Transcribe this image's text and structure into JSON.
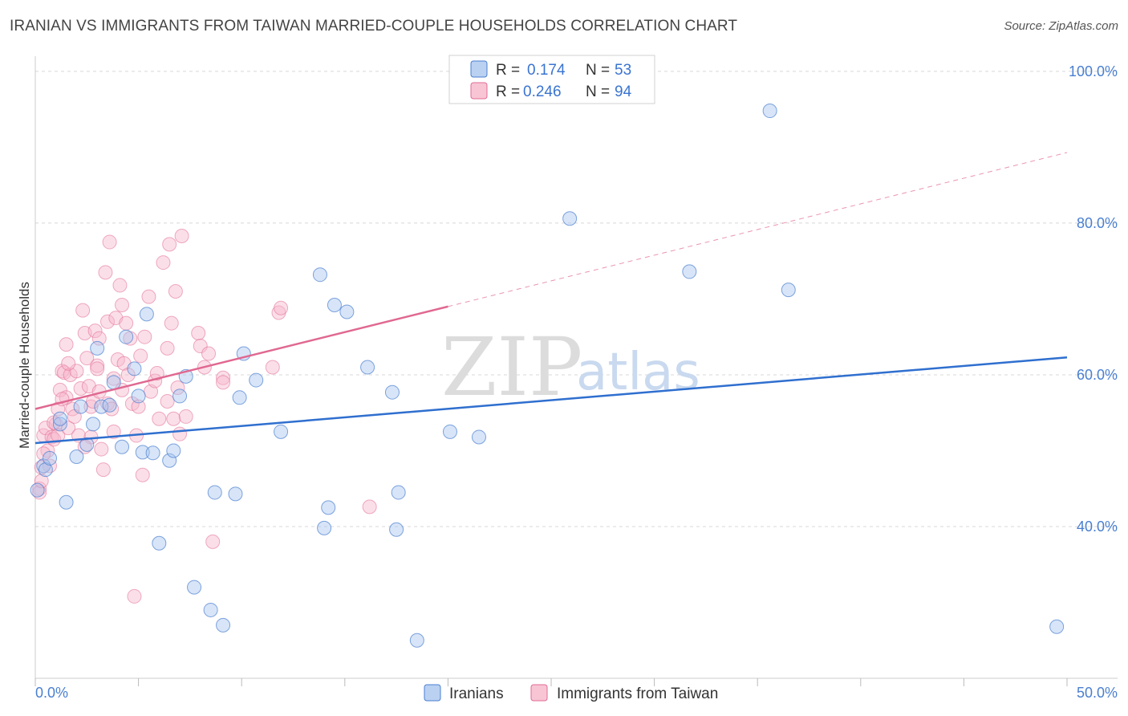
{
  "title": "IRANIAN VS IMMIGRANTS FROM TAIWAN MARRIED-COUPLE HOUSEHOLDS CORRELATION CHART",
  "source": "Source: ZipAtlas.com",
  "watermark": {
    "zip": "ZIP",
    "atlas": "atlas"
  },
  "colors": {
    "blue": "#4a7fd0",
    "blue_fill": "#a9c6ef",
    "blue_line": "#2f6fcf",
    "pink": "#e26b93",
    "pink_fill": "#f6b7cb",
    "pink_line": "#e06891",
    "grid": "#d8d8d8"
  },
  "legend_top": {
    "rows": [
      {
        "r_label": "R =",
        "r_value": "0.174",
        "n_label": "N =",
        "n_value": "53"
      },
      {
        "r_label": "R =",
        "r_value": "0.246",
        "n_label": "N =",
        "n_value": "94"
      }
    ]
  },
  "legend_bottom": {
    "series": [
      "Iranians",
      "Immigrants from Taiwan"
    ]
  },
  "chart_data": {
    "type": "scatter",
    "title": "IRANIAN VS IMMIGRANTS FROM TAIWAN MARRIED-COUPLE HOUSEHOLDS CORRELATION CHART",
    "xlabel": "",
    "ylabel": "Married-couple Households",
    "xlim": [
      0,
      50
    ],
    "ylim": [
      20,
      102
    ],
    "x_tick_labels": [
      "0.0%",
      "50.0%"
    ],
    "y_ticks": [
      40,
      60,
      80,
      100
    ],
    "y_tick_labels": [
      "40.0%",
      "60.0%",
      "80.0%",
      "100.0%"
    ],
    "series": [
      {
        "name": "Iranians",
        "r": 0.174,
        "n": 53,
        "trend": {
          "x0": 0,
          "y0": 51.0,
          "x1": 50,
          "y1": 62.3
        },
        "points": [
          [
            0.1,
            44.8
          ],
          [
            0.4,
            48.0
          ],
          [
            0.5,
            47.5
          ],
          [
            0.7,
            49.0
          ],
          [
            1.2,
            53.5
          ],
          [
            1.2,
            54.2
          ],
          [
            1.5,
            43.2
          ],
          [
            2.0,
            49.2
          ],
          [
            2.2,
            55.8
          ],
          [
            2.5,
            50.8
          ],
          [
            2.8,
            53.5
          ],
          [
            3.0,
            63.5
          ],
          [
            3.2,
            55.8
          ],
          [
            3.6,
            56.0
          ],
          [
            3.8,
            59.0
          ],
          [
            4.2,
            50.5
          ],
          [
            4.4,
            65.0
          ],
          [
            4.8,
            60.8
          ],
          [
            5.0,
            57.2
          ],
          [
            5.2,
            49.8
          ],
          [
            5.4,
            68.0
          ],
          [
            5.7,
            49.7
          ],
          [
            6.0,
            37.8
          ],
          [
            6.5,
            48.7
          ],
          [
            6.7,
            50.0
          ],
          [
            7.0,
            57.2
          ],
          [
            7.3,
            59.8
          ],
          [
            7.7,
            32.0
          ],
          [
            8.5,
            29.0
          ],
          [
            8.7,
            44.5
          ],
          [
            9.1,
            27.0
          ],
          [
            9.7,
            44.3
          ],
          [
            9.9,
            57.0
          ],
          [
            10.1,
            62.8
          ],
          [
            10.7,
            59.3
          ],
          [
            11.9,
            52.5
          ],
          [
            13.8,
            73.2
          ],
          [
            14.2,
            42.5
          ],
          [
            14.0,
            39.8
          ],
          [
            14.5,
            69.2
          ],
          [
            15.1,
            68.3
          ],
          [
            16.1,
            61.0
          ],
          [
            17.3,
            57.7
          ],
          [
            17.6,
            44.5
          ],
          [
            17.5,
            39.6
          ],
          [
            18.5,
            25.0
          ],
          [
            20.1,
            52.5
          ],
          [
            21.5,
            51.8
          ],
          [
            25.9,
            80.6
          ],
          [
            31.7,
            73.6
          ],
          [
            35.6,
            94.8
          ],
          [
            36.5,
            71.2
          ],
          [
            49.5,
            26.8
          ]
        ]
      },
      {
        "name": "Immigrants from Taiwan",
        "r": 0.246,
        "n": 94,
        "trend": {
          "x0": 0,
          "y0": 55.5,
          "x1": 20,
          "y1": 69.0,
          "dashed_to": {
            "x": 50,
            "y": 89.3
          }
        },
        "points": [
          [
            0.2,
            45.0
          ],
          [
            0.2,
            44.5
          ],
          [
            0.3,
            47.8
          ],
          [
            0.4,
            52.0
          ],
          [
            0.5,
            53.0
          ],
          [
            0.6,
            50.0
          ],
          [
            0.7,
            48.0
          ],
          [
            0.8,
            51.8
          ],
          [
            0.9,
            51.5
          ],
          [
            1.0,
            53.5
          ],
          [
            1.1,
            55.5
          ],
          [
            1.1,
            52.0
          ],
          [
            1.2,
            58.0
          ],
          [
            1.3,
            60.5
          ],
          [
            1.4,
            60.3
          ],
          [
            1.5,
            64.0
          ],
          [
            1.5,
            57.0
          ],
          [
            1.6,
            53.0
          ],
          [
            1.7,
            60.0
          ],
          [
            1.8,
            55.5
          ],
          [
            1.9,
            54.5
          ],
          [
            2.0,
            60.5
          ],
          [
            2.1,
            52.0
          ],
          [
            2.2,
            58.2
          ],
          [
            2.3,
            68.5
          ],
          [
            2.4,
            65.5
          ],
          [
            2.5,
            62.2
          ],
          [
            2.6,
            58.5
          ],
          [
            2.7,
            55.8
          ],
          [
            2.7,
            51.8
          ],
          [
            2.8,
            56.5
          ],
          [
            2.9,
            65.8
          ],
          [
            3.0,
            61.2
          ],
          [
            3.1,
            64.8
          ],
          [
            3.1,
            57.8
          ],
          [
            3.2,
            50.2
          ],
          [
            3.3,
            47.5
          ],
          [
            3.4,
            73.5
          ],
          [
            3.5,
            67.0
          ],
          [
            3.5,
            56.2
          ],
          [
            3.6,
            77.5
          ],
          [
            3.7,
            55.5
          ],
          [
            3.8,
            52.5
          ],
          [
            3.9,
            67.5
          ],
          [
            4.0,
            62.0
          ],
          [
            4.1,
            71.8
          ],
          [
            4.2,
            69.2
          ],
          [
            4.2,
            58.0
          ],
          [
            4.3,
            61.5
          ],
          [
            4.4,
            66.8
          ],
          [
            4.5,
            60.0
          ],
          [
            4.6,
            64.8
          ],
          [
            4.7,
            56.2
          ],
          [
            4.8,
            30.8
          ],
          [
            4.9,
            52.0
          ],
          [
            5.0,
            55.8
          ],
          [
            5.1,
            62.5
          ],
          [
            5.2,
            46.8
          ],
          [
            5.3,
            65.0
          ],
          [
            5.5,
            70.3
          ],
          [
            5.6,
            57.8
          ],
          [
            5.8,
            59.2
          ],
          [
            6.0,
            54.2
          ],
          [
            6.2,
            74.8
          ],
          [
            6.4,
            63.5
          ],
          [
            6.4,
            56.5
          ],
          [
            6.5,
            77.2
          ],
          [
            6.6,
            66.8
          ],
          [
            6.7,
            54.2
          ],
          [
            6.8,
            71.0
          ],
          [
            6.9,
            58.3
          ],
          [
            7.0,
            52.2
          ],
          [
            7.1,
            78.3
          ],
          [
            7.3,
            54.5
          ],
          [
            7.9,
            65.5
          ],
          [
            8.0,
            63.8
          ],
          [
            8.2,
            61.0
          ],
          [
            8.4,
            62.8
          ],
          [
            8.6,
            38.0
          ],
          [
            9.1,
            59.6
          ],
          [
            9.1,
            59.0
          ],
          [
            11.5,
            61.0
          ],
          [
            11.8,
            68.2
          ],
          [
            11.9,
            68.8
          ],
          [
            16.2,
            42.6
          ],
          [
            0.3,
            46.0
          ],
          [
            0.9,
            53.7
          ],
          [
            1.3,
            56.8
          ],
          [
            2.4,
            50.5
          ],
          [
            3.0,
            60.8
          ],
          [
            0.4,
            49.6
          ],
          [
            1.6,
            61.5
          ],
          [
            3.8,
            59.5
          ],
          [
            5.9,
            60.2
          ]
        ]
      }
    ]
  }
}
